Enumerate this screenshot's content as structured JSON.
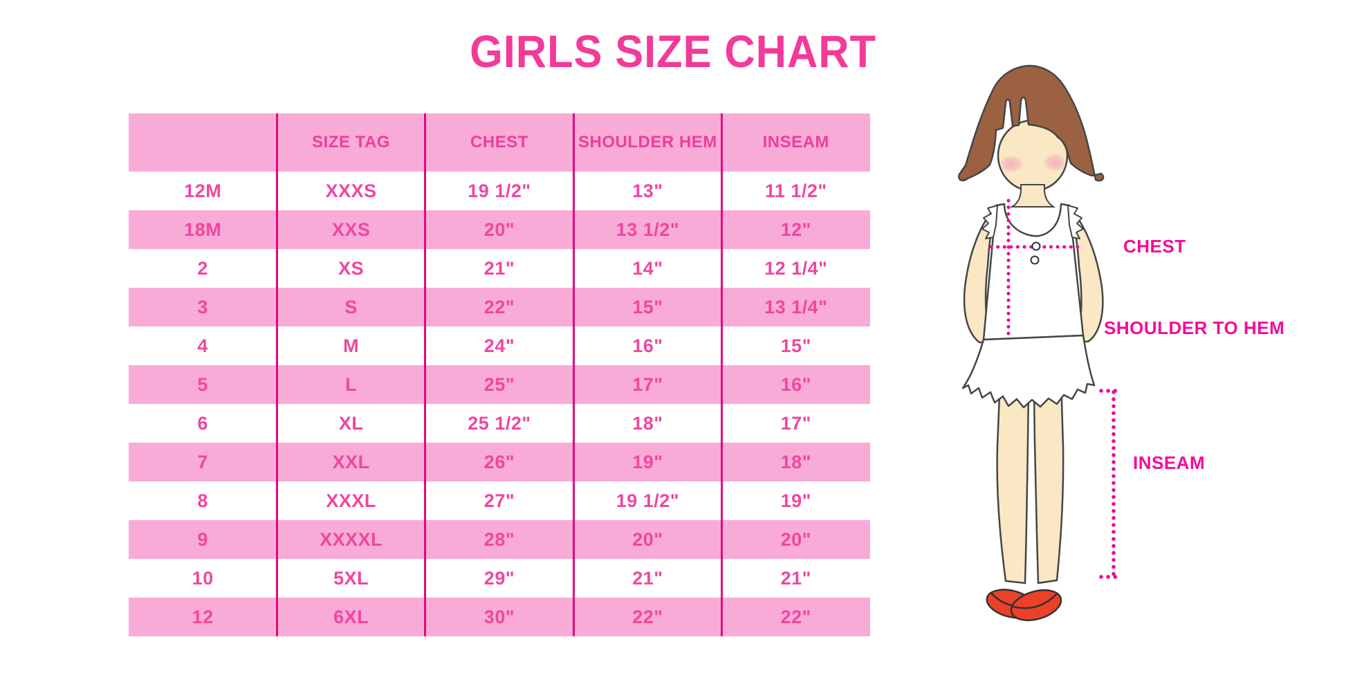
{
  "title": "GIRLS SIZE CHART",
  "chart_data": {
    "type": "table",
    "title": "GIRLS SIZE CHART",
    "columns": [
      "",
      "SIZE TAG",
      "CHEST",
      "SHOULDER HEM",
      "INSEAM"
    ],
    "rows": [
      [
        "12M",
        "XXXS",
        "19 1/2\"",
        "13\"",
        "11 1/2\""
      ],
      [
        "18M",
        "XXS",
        "20\"",
        "13 1/2\"",
        "12\""
      ],
      [
        "2",
        "XS",
        "21\"",
        "14\"",
        "12 1/4\""
      ],
      [
        "3",
        "S",
        "22\"",
        "15\"",
        "13 1/4\""
      ],
      [
        "4",
        "M",
        "24\"",
        "16\"",
        "15\""
      ],
      [
        "5",
        "L",
        "25\"",
        "17\"",
        "16\""
      ],
      [
        "6",
        "XL",
        "25 1/2\"",
        "18\"",
        "17\""
      ],
      [
        "7",
        "XXL",
        "26\"",
        "19\"",
        "18\""
      ],
      [
        "8",
        "XXXL",
        "27\"",
        "19 1/2\"",
        "19\""
      ],
      [
        "9",
        "XXXXL",
        "28\"",
        "20\"",
        "20\""
      ],
      [
        "10",
        "5XL",
        "29\"",
        "21\"",
        "21\""
      ],
      [
        "12",
        "6XL",
        "30\"",
        "22\"",
        "22\""
      ]
    ],
    "layout": {
      "alternating_rows": "white/pink",
      "grid": "vertical column dividers only"
    }
  },
  "figure": {
    "description": "illustration of girl with measurement guides",
    "labels": {
      "chest": "CHEST",
      "shoulder_to_hem": "SHOULDER TO HEM",
      "inseam": "INSEAM"
    }
  },
  "colors": {
    "accent_pink": "#f23a99",
    "row_pink": "#f9abd7",
    "divider_pink": "#e0087e",
    "cell_text_pink": "#f0469f",
    "header_text_pink": "#ee3d9c",
    "label_magenta": "#f50a9b",
    "dotted_line_magenta": "#ec0c8f",
    "hair_brown": "#9c6140",
    "skin": "#fae7c4",
    "blush": "#f2a9b9",
    "shoe_red": "#eb4129",
    "outline": "#454545"
  }
}
